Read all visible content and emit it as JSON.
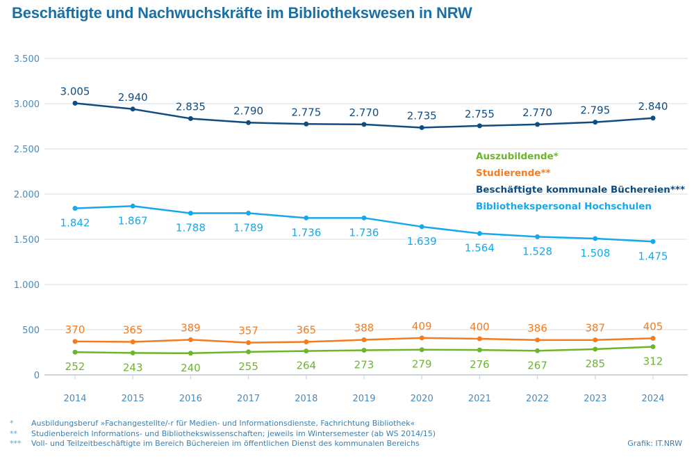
{
  "chart_data": {
    "type": "line",
    "title": "Beschäftigte und Nachwuchskräfte im Bibliothekswesen in NRW",
    "xlabel": "",
    "ylabel": "",
    "x": [
      "2014",
      "2015",
      "2016",
      "2017",
      "2018",
      "2019",
      "2020",
      "2021",
      "2022",
      "2023",
      "2024"
    ],
    "ylim": [
      0,
      3500
    ],
    "yticks": [
      0,
      500,
      1000,
      1500,
      2000,
      2500,
      3000,
      3500
    ],
    "ytick_labels": [
      "0",
      "500",
      "1.000",
      "1.500",
      "2.000",
      "2.500",
      "3.000",
      "3.500"
    ],
    "grid": true,
    "legend_position": "right, between top two series",
    "series": [
      {
        "name": "Beschäftigte kommunale Büchereien***",
        "color": "#0f4c81",
        "label_position": "above",
        "values": [
          3005,
          2940,
          2835,
          2790,
          2775,
          2770,
          2735,
          2755,
          2770,
          2795,
          2840
        ],
        "labels": [
          "3.005",
          "2.940",
          "2.835",
          "2.790",
          "2.775",
          "2.770",
          "2.735",
          "2.755",
          "2.770",
          "2.795",
          "2.840"
        ]
      },
      {
        "name": "Bibliothekspersonal Hochschulen",
        "color": "#16a9ea",
        "label_position": "below",
        "values": [
          1842,
          1867,
          1788,
          1789,
          1736,
          1736,
          1639,
          1564,
          1528,
          1508,
          1475
        ],
        "labels": [
          "1.842",
          "1.867",
          "1.788",
          "1.789",
          "1.736",
          "1.736",
          "1.639",
          "1.564",
          "1.528",
          "1.508",
          "1.475"
        ]
      },
      {
        "name": "Studierende**",
        "color": "#f47b20",
        "label_position": "above",
        "values": [
          370,
          365,
          389,
          357,
          365,
          388,
          409,
          400,
          386,
          387,
          405
        ],
        "labels": [
          "370",
          "365",
          "389",
          "357",
          "365",
          "388",
          "409",
          "400",
          "386",
          "387",
          "405"
        ]
      },
      {
        "name": "Auszubildende*",
        "color": "#6cb52d",
        "label_position": "below",
        "values": [
          252,
          243,
          240,
          255,
          264,
          273,
          279,
          276,
          267,
          285,
          312
        ],
        "labels": [
          "252",
          "243",
          "240",
          "255",
          "264",
          "273",
          "279",
          "276",
          "267",
          "285",
          "312"
        ]
      }
    ],
    "legend": [
      {
        "label": "Auszubildende*",
        "color": "#6cb52d"
      },
      {
        "label": "Studierende**",
        "color": "#f47b20"
      },
      {
        "label": "Beschäftigte kommunale Büchereien***",
        "color": "#0f4c81"
      },
      {
        "label": "Bibliothekspersonal Hochschulen",
        "color": "#16a9ea"
      }
    ]
  },
  "footnotes": [
    {
      "mark": "*",
      "text": "Ausbildungsberuf »Fachangestellte/-r für Medien- und Informationsdienste, Fachrichtung Bibliothek«"
    },
    {
      "mark": "**",
      "text": "Studienbereich Informations- und Bibliothekswissenschaften; jeweils im Wintersemester (ab WS 2014/15)"
    },
    {
      "mark": "***",
      "text": "Voll- und Teilzeitbeschäftigte im Bereich Büchereien im öffentlichen Dienst des kommunalen Bereichs"
    }
  ],
  "source": "Grafik: IT.NRW"
}
